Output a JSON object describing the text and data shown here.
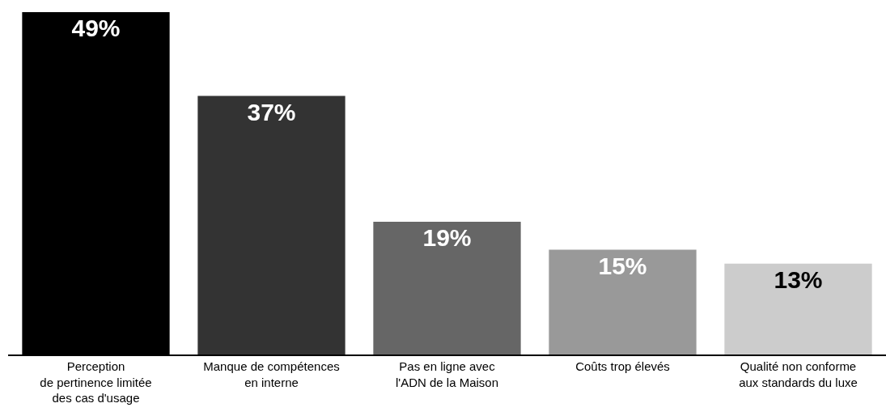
{
  "chart_data": {
    "type": "bar",
    "categories": [
      "Perception\nde pertinence limitée\ndes cas d'usage",
      "Manque de compétences\nen interne",
      "Pas en ligne avec\nl'ADN de la Maison",
      "Coûts trop élevés",
      "Qualité non conforme\naux standards du luxe"
    ],
    "values": [
      49,
      37,
      19,
      15,
      13
    ],
    "colors": [
      "#000000",
      "#333333",
      "#666666",
      "#999999",
      "#cccccc"
    ],
    "value_labels": [
      "49%",
      "37%",
      "19%",
      "15%",
      "13%"
    ],
    "ylim": [
      0,
      49
    ],
    "tick_labels": "x",
    "legend": false
  }
}
